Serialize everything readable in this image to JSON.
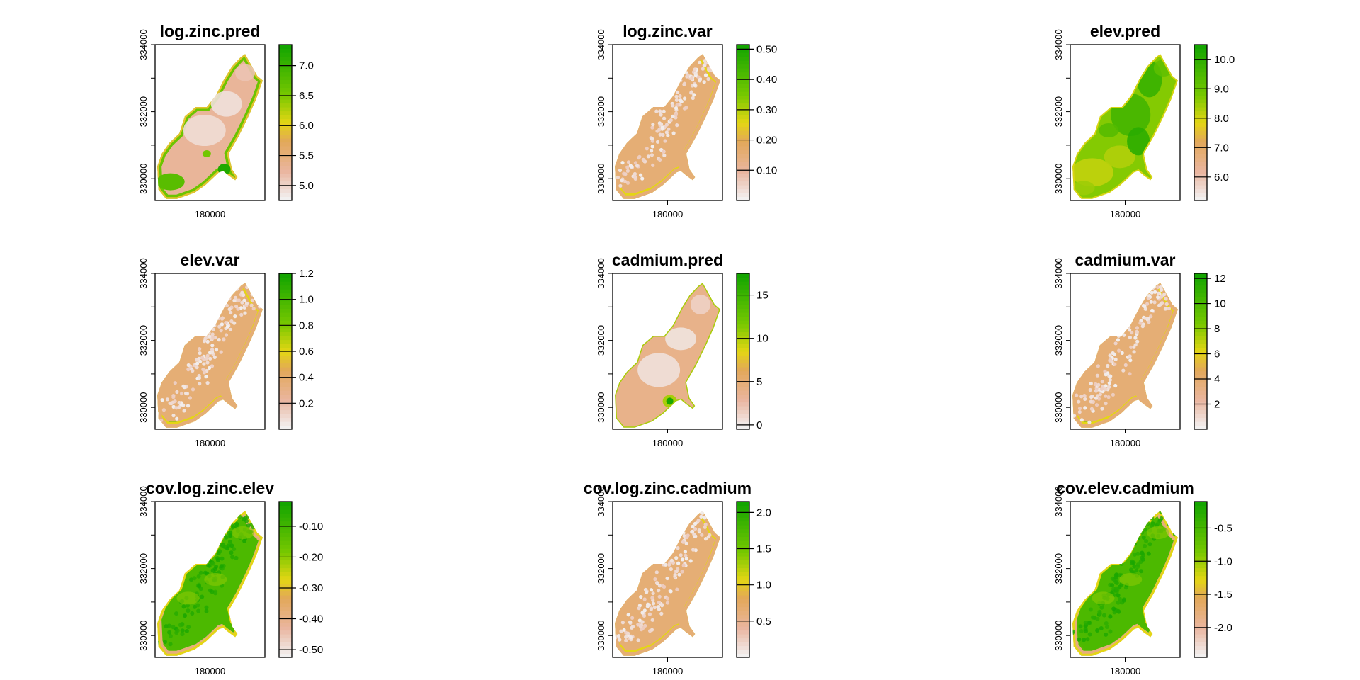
{
  "chart_data": [
    {
      "type": "heatmap",
      "title": "log.zinc.pred",
      "x_ticks": [
        "180000"
      ],
      "y_ticks": [
        "330000",
        "332000",
        "334000"
      ],
      "legend": {
        "labels": [
          "5.0",
          "5.5",
          "6.0",
          "6.5",
          "7.0"
        ],
        "values": [
          5.0,
          5.5,
          6.0,
          6.5,
          7.0
        ],
        "range": [
          4.75,
          7.35
        ]
      },
      "scheme": "terrain.colors",
      "pattern": "pred_zinc"
    },
    {
      "type": "heatmap",
      "title": "log.zinc.var",
      "x_ticks": [
        "180000"
      ],
      "y_ticks": [
        "330000",
        "332000",
        "334000"
      ],
      "legend": {
        "labels": [
          "0.10",
          "0.20",
          "0.30",
          "0.40",
          "0.50"
        ],
        "values": [
          0.1,
          0.2,
          0.3,
          0.4,
          0.5
        ],
        "range": [
          0.0,
          0.515
        ]
      },
      "scheme": "terrain.colors",
      "pattern": "var"
    },
    {
      "type": "heatmap",
      "title": "elev.pred",
      "x_ticks": [
        "180000"
      ],
      "y_ticks": [
        "330000",
        "332000",
        "334000"
      ],
      "legend": {
        "labels": [
          "6.0",
          "7.0",
          "8.0",
          "9.0",
          "10.0"
        ],
        "values": [
          6.0,
          7.0,
          8.0,
          9.0,
          10.0
        ],
        "range": [
          5.2,
          10.5
        ]
      },
      "scheme": "terrain.colors",
      "pattern": "pred_elev"
    },
    {
      "type": "heatmap",
      "title": "elev.var",
      "x_ticks": [
        "180000"
      ],
      "y_ticks": [
        "330000",
        "332000",
        "334000"
      ],
      "legend": {
        "labels": [
          "0.2",
          "0.4",
          "0.6",
          "0.8",
          "1.0",
          "1.2"
        ],
        "values": [
          0.2,
          0.4,
          0.6,
          0.8,
          1.0,
          1.2
        ],
        "range": [
          0.0,
          1.2
        ]
      },
      "scheme": "terrain.colors",
      "pattern": "var"
    },
    {
      "type": "heatmap",
      "title": "cadmium.pred",
      "x_ticks": [
        "180000"
      ],
      "y_ticks": [
        "330000",
        "332000",
        "334000"
      ],
      "legend": {
        "labels": [
          "0",
          "5",
          "10",
          "15"
        ],
        "values": [
          0,
          5,
          10,
          15
        ],
        "range": [
          -0.5,
          17.5
        ]
      },
      "scheme": "terrain.colors",
      "pattern": "pred_cadmium"
    },
    {
      "type": "heatmap",
      "title": "cadmium.var",
      "x_ticks": [
        "180000"
      ],
      "y_ticks": [
        "330000",
        "332000",
        "334000"
      ],
      "legend": {
        "labels": [
          "2",
          "4",
          "6",
          "8",
          "10",
          "12"
        ],
        "values": [
          2,
          4,
          6,
          8,
          10,
          12
        ],
        "range": [
          0.0,
          12.4
        ]
      },
      "scheme": "terrain.colors",
      "pattern": "var"
    },
    {
      "type": "heatmap",
      "title": "cov.log.zinc.elev",
      "x_ticks": [
        "180000"
      ],
      "y_ticks": [
        "330000",
        "332000",
        "334000"
      ],
      "legend": {
        "labels": [
          "-0.50",
          "-0.40",
          "-0.30",
          "-0.20",
          "-0.10"
        ],
        "values": [
          -0.5,
          -0.4,
          -0.3,
          -0.2,
          -0.1
        ],
        "range": [
          -0.525,
          -0.02
        ]
      },
      "scheme": "terrain.colors",
      "pattern": "cov_neg"
    },
    {
      "type": "heatmap",
      "title": "cov.log.zinc.cadmium",
      "x_ticks": [
        "180000"
      ],
      "y_ticks": [
        "330000",
        "332000",
        "334000"
      ],
      "legend": {
        "labels": [
          "0.5",
          "1.0",
          "1.5",
          "2.0"
        ],
        "values": [
          0.5,
          1.0,
          1.5,
          2.0
        ],
        "range": [
          0.0,
          2.15
        ]
      },
      "scheme": "terrain.colors",
      "pattern": "var"
    },
    {
      "type": "heatmap",
      "title": "cov.elev.cadmium",
      "x_ticks": [
        "180000"
      ],
      "y_ticks": [
        "330000",
        "332000",
        "334000"
      ],
      "legend": {
        "labels": [
          "-2.0",
          "-1.5",
          "-1.0",
          "-0.5"
        ],
        "values": [
          -2.0,
          -1.5,
          -1.0,
          -0.5
        ],
        "range": [
          -2.45,
          -0.1
        ]
      },
      "scheme": "terrain.colors",
      "pattern": "cov_neg"
    }
  ]
}
